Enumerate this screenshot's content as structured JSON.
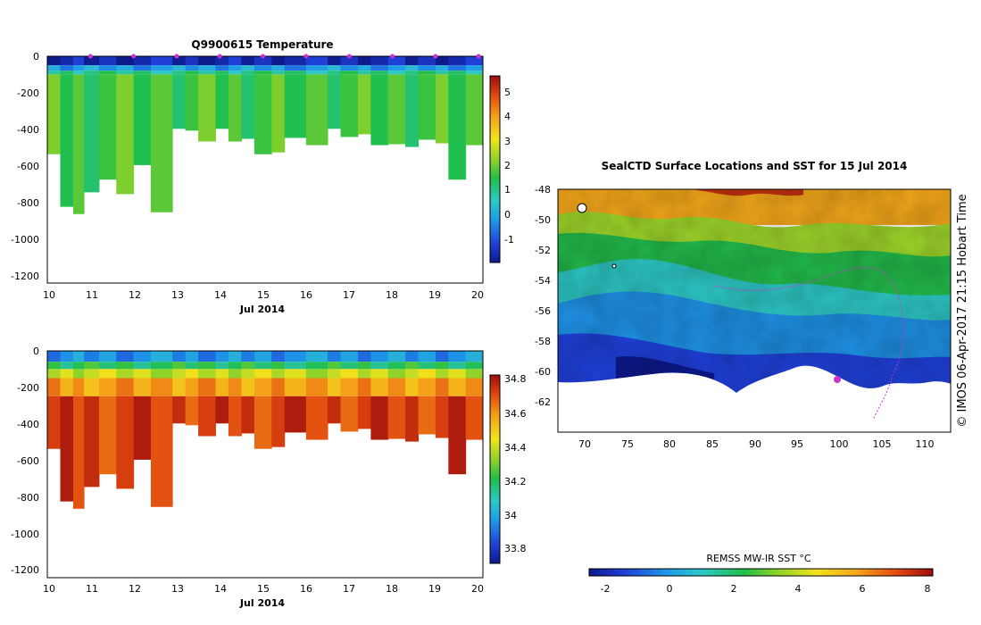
{
  "colors": {
    "bg": "#ffffff",
    "cold": "#0d1a8c",
    "profile_track": "#cc33cc"
  },
  "chart_data": [
    {
      "id": "temperature",
      "type": "heatmap",
      "title": "Q9900615  Temperature",
      "xlabel": "Jul 2014",
      "xticks": [
        "10",
        "11",
        "12",
        "13",
        "14",
        "15",
        "16",
        "17",
        "18",
        "19",
        "20"
      ],
      "xlim": [
        10,
        20.1
      ],
      "ylim": [
        -1250,
        0
      ],
      "yticks": [
        "0",
        "-200",
        "-400",
        "-600",
        "-800",
        "-1000",
        "-1200"
      ],
      "colorbar_ticks": [
        "5",
        "4",
        "3",
        "2",
        "1",
        "0",
        "-1"
      ],
      "colorbar_range": [
        -1.8,
        5.8
      ],
      "profile_times": [
        10,
        10.3,
        10.6,
        10.85,
        11.2,
        11.6,
        12.0,
        12.4,
        12.9,
        13.2,
        13.5,
        13.9,
        14.2,
        14.5,
        14.8,
        15.2,
        15.5,
        16.0,
        16.5,
        16.8,
        17.2,
        17.5,
        17.9,
        18.3,
        18.6,
        19.0,
        19.3,
        19.7
      ],
      "max_depths": [
        -540,
        -830,
        -870,
        -750,
        -680,
        -760,
        -600,
        -860,
        -400,
        -410,
        -470,
        -400,
        -470,
        -455,
        -540,
        -530,
        -450,
        -490,
        -400,
        -445,
        -430,
        -490,
        -485,
        -500,
        -460,
        -480,
        -680,
        -490
      ],
      "profile_markers": [
        11,
        12,
        13,
        14,
        15,
        16,
        17,
        18,
        19,
        20
      ],
      "layers": [
        {
          "depth": 50,
          "value": -1.5
        },
        {
          "depth": 80,
          "value": 0.0
        },
        {
          "depth": 100,
          "value": 1.2
        },
        {
          "depth": 2000,
          "value": 1.8
        }
      ]
    },
    {
      "id": "salinity",
      "type": "heatmap",
      "title": "",
      "xlabel": "Jul 2014",
      "xticks": [
        "10",
        "11",
        "12",
        "13",
        "14",
        "15",
        "16",
        "17",
        "18",
        "19",
        "20"
      ],
      "xlim": [
        10,
        20.1
      ],
      "ylim": [
        -1250,
        0
      ],
      "yticks": [
        "0",
        "-200",
        "-400",
        "-600",
        "-800",
        "-1000",
        "-1200"
      ],
      "colorbar_ticks": [
        "34.8",
        "34.6",
        "34.4",
        "34.2",
        "34",
        "33.8"
      ],
      "colorbar_range": [
        33.7,
        34.85
      ],
      "profile_times": [
        10,
        10.3,
        10.6,
        10.85,
        11.2,
        11.6,
        12.0,
        12.4,
        12.9,
        13.2,
        13.5,
        13.9,
        14.2,
        14.5,
        14.8,
        15.2,
        15.5,
        16.0,
        16.5,
        16.8,
        17.2,
        17.5,
        17.9,
        18.3,
        18.6,
        19.0,
        19.3,
        19.7
      ],
      "max_depths": [
        -540,
        -830,
        -870,
        -750,
        -680,
        -760,
        -600,
        -860,
        -400,
        -410,
        -470,
        -400,
        -470,
        -455,
        -540,
        -530,
        -450,
        -490,
        -400,
        -445,
        -430,
        -490,
        -485,
        -500,
        -460,
        -480,
        -680,
        -490
      ],
      "layers": [
        {
          "depth": 60,
          "value": 33.95
        },
        {
          "depth": 100,
          "value": 34.2
        },
        {
          "depth": 150,
          "value": 34.4
        },
        {
          "depth": 250,
          "value": 34.6
        },
        {
          "depth": 2000,
          "value": 34.75
        }
      ]
    },
    {
      "id": "sst_map",
      "type": "heatmap",
      "title": "SealCTD Surface Locations and SST for 15 Jul 2014",
      "xlabel": "",
      "xticks": [
        "70",
        "75",
        "80",
        "85",
        "90",
        "95",
        "100",
        "105",
        "110"
      ],
      "xlim": [
        67,
        113
      ],
      "ylim": [
        -64,
        -48
      ],
      "yticks": [
        "-48",
        "-50",
        "-52",
        "-54",
        "-56",
        "-58",
        "-60",
        "-62"
      ],
      "colorbar_label": "REMSS MW-IR SST °C",
      "colorbar_ticks": [
        "-2",
        "0",
        "2",
        "4",
        "6",
        "8"
      ],
      "colorbar_range": [
        -2.5,
        8.3
      ],
      "side_label": "© IMOS 06-Apr-2017 21:15 Hobart Time"
    }
  ]
}
